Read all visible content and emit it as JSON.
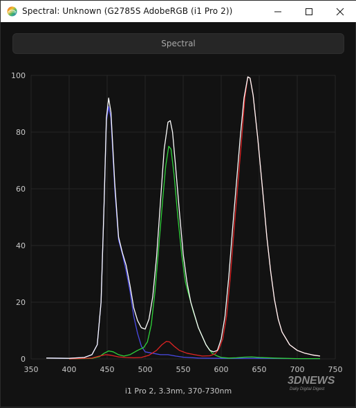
{
  "window": {
    "title": "Spectral: Unknown (G2785S AdobeRGB (i1 Pro 2))",
    "icon": "color-wheel-icon",
    "controls": [
      "minimize-icon",
      "maximize-icon",
      "close-icon"
    ]
  },
  "toolbar": {
    "spectral_label": "Spectral"
  },
  "watermark": {
    "main": "3DNEWS",
    "sub": "Daily Digital Digest"
  },
  "chart_data": {
    "type": "line",
    "title": "",
    "xlabel": "i1 Pro 2, 3.3nm, 370-730nm",
    "ylabel": "",
    "xlim": [
      350,
      750
    ],
    "ylim": [
      0,
      100
    ],
    "xticks": [
      350,
      400,
      450,
      500,
      550,
      600,
      650,
      700,
      750
    ],
    "yticks": [
      0,
      20,
      40,
      60,
      80,
      100
    ],
    "grid": true,
    "background": "#121212",
    "series": [
      {
        "color": "#ffffff",
        "points": [
          [
            370,
            0.3
          ],
          [
            400,
            0.2
          ],
          [
            420,
            0.5
          ],
          [
            430,
            1.5
          ],
          [
            437,
            5
          ],
          [
            442,
            20
          ],
          [
            446,
            55
          ],
          [
            449,
            85
          ],
          [
            452,
            92
          ],
          [
            455,
            87
          ],
          [
            460,
            62
          ],
          [
            465,
            43
          ],
          [
            470,
            37.5
          ],
          [
            475,
            33
          ],
          [
            480,
            26
          ],
          [
            485,
            18
          ],
          [
            490,
            13.5
          ],
          [
            495,
            11
          ],
          [
            500,
            10.5
          ],
          [
            505,
            14
          ],
          [
            510,
            22
          ],
          [
            515,
            36
          ],
          [
            520,
            55
          ],
          [
            525,
            74
          ],
          [
            530,
            83.5
          ],
          [
            533,
            84
          ],
          [
            536,
            80
          ],
          [
            540,
            68
          ],
          [
            545,
            52
          ],
          [
            550,
            37
          ],
          [
            555,
            27
          ],
          [
            560,
            20
          ],
          [
            570,
            11
          ],
          [
            580,
            5
          ],
          [
            585,
            3
          ],
          [
            590,
            2.5
          ],
          [
            595,
            3
          ],
          [
            600,
            7
          ],
          [
            605,
            15
          ],
          [
            610,
            29
          ],
          [
            615,
            46
          ],
          [
            620,
            62
          ],
          [
            625,
            78
          ],
          [
            630,
            92
          ],
          [
            635,
            99.5
          ],
          [
            638,
            99
          ],
          [
            642,
            93
          ],
          [
            648,
            78
          ],
          [
            655,
            58
          ],
          [
            660,
            43
          ],
          [
            665,
            31
          ],
          [
            670,
            21
          ],
          [
            675,
            14
          ],
          [
            680,
            9.5
          ],
          [
            690,
            5
          ],
          [
            700,
            3
          ],
          [
            710,
            2
          ],
          [
            720,
            1.4
          ],
          [
            730,
            1
          ]
        ]
      },
      {
        "color": "#4a4ae6",
        "points": [
          [
            370,
            0.3
          ],
          [
            400,
            0.2
          ],
          [
            420,
            0.5
          ],
          [
            430,
            1.5
          ],
          [
            437,
            5
          ],
          [
            442,
            20
          ],
          [
            446,
            55
          ],
          [
            449,
            84
          ],
          [
            452,
            89
          ],
          [
            455,
            85
          ],
          [
            460,
            60
          ],
          [
            465,
            42
          ],
          [
            470,
            37
          ],
          [
            475,
            31
          ],
          [
            480,
            24
          ],
          [
            485,
            15
          ],
          [
            490,
            9
          ],
          [
            495,
            4.5
          ],
          [
            500,
            2.5
          ],
          [
            510,
            2
          ],
          [
            520,
            1.5
          ],
          [
            530,
            1.5
          ],
          [
            540,
            1
          ],
          [
            550,
            0.6
          ],
          [
            570,
            0.3
          ],
          [
            600,
            0.2
          ],
          [
            650,
            0.2
          ],
          [
            700,
            0.1
          ],
          [
            730,
            0.1
          ]
        ]
      },
      {
        "color": "#2fd23a",
        "points": [
          [
            400,
            0
          ],
          [
            430,
            0.2
          ],
          [
            440,
            0.8
          ],
          [
            446,
            2
          ],
          [
            452,
            2.8
          ],
          [
            458,
            2.5
          ],
          [
            465,
            1.5
          ],
          [
            472,
            1
          ],
          [
            480,
            1.5
          ],
          [
            490,
            3
          ],
          [
            498,
            4
          ],
          [
            503,
            6
          ],
          [
            508,
            12
          ],
          [
            513,
            24
          ],
          [
            518,
            40
          ],
          [
            523,
            56
          ],
          [
            527,
            68
          ],
          [
            531,
            75
          ],
          [
            534,
            74
          ],
          [
            538,
            65
          ],
          [
            543,
            50
          ],
          [
            548,
            37
          ],
          [
            553,
            27
          ],
          [
            558,
            22
          ],
          [
            563,
            17
          ],
          [
            570,
            11
          ],
          [
            580,
            5
          ],
          [
            588,
            2
          ],
          [
            595,
            1
          ],
          [
            600,
            0.5
          ],
          [
            610,
            0.3
          ],
          [
            620,
            0.4
          ],
          [
            630,
            0.6
          ],
          [
            640,
            0.7
          ],
          [
            650,
            0.5
          ],
          [
            670,
            0.3
          ],
          [
            700,
            0.1
          ],
          [
            730,
            0.1
          ]
        ]
      },
      {
        "color": "#e02424",
        "points": [
          [
            400,
            0
          ],
          [
            430,
            0.3
          ],
          [
            440,
            1
          ],
          [
            448,
            1.5
          ],
          [
            455,
            1.3
          ],
          [
            465,
            0.7
          ],
          [
            475,
            0.5
          ],
          [
            485,
            0.4
          ],
          [
            495,
            0.5
          ],
          [
            505,
            1.3
          ],
          [
            515,
            3
          ],
          [
            522,
            5
          ],
          [
            528,
            6.2
          ],
          [
            532,
            6
          ],
          [
            538,
            4.5
          ],
          [
            545,
            3
          ],
          [
            555,
            2
          ],
          [
            565,
            1.5
          ],
          [
            575,
            1
          ],
          [
            585,
            1.1
          ],
          [
            592,
            1.8
          ],
          [
            597,
            3.5
          ],
          [
            602,
            7
          ],
          [
            607,
            15
          ],
          [
            612,
            29
          ],
          [
            617,
            46
          ],
          [
            622,
            62
          ],
          [
            627,
            78
          ],
          [
            631,
            92
          ],
          [
            635,
            99.5
          ],
          [
            638,
            99
          ],
          [
            642,
            93
          ],
          [
            648,
            78
          ],
          [
            655,
            58
          ],
          [
            660,
            43
          ],
          [
            665,
            31
          ],
          [
            670,
            21
          ],
          [
            675,
            14
          ],
          [
            680,
            9.5
          ],
          [
            690,
            5
          ],
          [
            700,
            3
          ],
          [
            710,
            2
          ],
          [
            720,
            1.4
          ],
          [
            730,
            1
          ]
        ]
      }
    ]
  }
}
